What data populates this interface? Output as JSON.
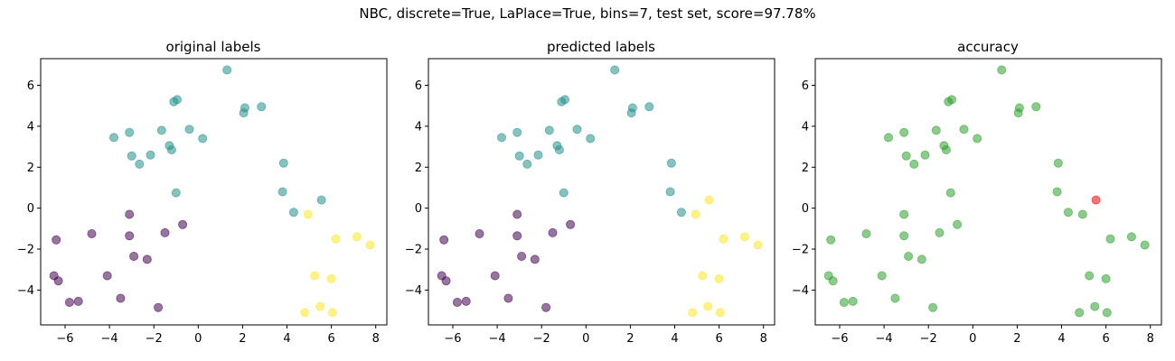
{
  "figure": {
    "suptitle": "NBC, discrete=True, LaPlace=True, bins=7, test set, score=97.78%"
  },
  "colors": {
    "class0": "#440154",
    "class1": "#21918c",
    "class2": "#fde725",
    "correct": "#2ca02c",
    "wrong": "#ff0000"
  },
  "chart_data": [
    {
      "type": "scatter",
      "title": "original labels",
      "xlim": [
        -7.1,
        8.5
      ],
      "ylim": [
        -5.7,
        7.3
      ],
      "xticks": [
        -6,
        -4,
        -2,
        0,
        2,
        4,
        6,
        8
      ],
      "yticks": [
        -4,
        -2,
        0,
        2,
        4,
        6
      ],
      "points": [
        {
          "x": -6.4,
          "y": -1.55,
          "class": 0
        },
        {
          "x": -6.5,
          "y": -3.3,
          "class": 0
        },
        {
          "x": -6.3,
          "y": -3.55,
          "class": 0
        },
        {
          "x": -5.8,
          "y": -4.6,
          "class": 0
        },
        {
          "x": -5.4,
          "y": -4.55,
          "class": 0
        },
        {
          "x": -4.8,
          "y": -1.25,
          "class": 0
        },
        {
          "x": -4.1,
          "y": -3.3,
          "class": 0
        },
        {
          "x": -3.5,
          "y": -4.4,
          "class": 0
        },
        {
          "x": -3.1,
          "y": -0.3,
          "class": 0
        },
        {
          "x": -3.1,
          "y": -1.35,
          "class": 0
        },
        {
          "x": -2.9,
          "y": -2.35,
          "class": 0
        },
        {
          "x": -2.3,
          "y": -2.5,
          "class": 0
        },
        {
          "x": -1.8,
          "y": -4.85,
          "class": 0
        },
        {
          "x": -1.5,
          "y": -1.2,
          "class": 0
        },
        {
          "x": -0.7,
          "y": -0.8,
          "class": 0
        },
        {
          "x": -3.8,
          "y": 3.45,
          "class": 1
        },
        {
          "x": -3.1,
          "y": 3.7,
          "class": 1
        },
        {
          "x": -3.0,
          "y": 2.55,
          "class": 1
        },
        {
          "x": -2.65,
          "y": 2.15,
          "class": 1
        },
        {
          "x": -2.15,
          "y": 2.6,
          "class": 1
        },
        {
          "x": -1.65,
          "y": 3.8,
          "class": 1
        },
        {
          "x": -1.3,
          "y": 3.05,
          "class": 1
        },
        {
          "x": -1.2,
          "y": 2.85,
          "class": 1
        },
        {
          "x": -1.1,
          "y": 5.2,
          "class": 1
        },
        {
          "x": -0.95,
          "y": 5.3,
          "class": 1
        },
        {
          "x": -1.0,
          "y": 0.75,
          "class": 1
        },
        {
          "x": -0.4,
          "y": 3.85,
          "class": 1
        },
        {
          "x": 0.2,
          "y": 3.4,
          "class": 1
        },
        {
          "x": 1.3,
          "y": 6.75,
          "class": 1
        },
        {
          "x": 2.05,
          "y": 4.65,
          "class": 1
        },
        {
          "x": 2.1,
          "y": 4.9,
          "class": 1
        },
        {
          "x": 2.85,
          "y": 4.95,
          "class": 1
        },
        {
          "x": 3.85,
          "y": 2.2,
          "class": 1
        },
        {
          "x": 3.8,
          "y": 0.8,
          "class": 1
        },
        {
          "x": 4.3,
          "y": -0.2,
          "class": 1
        },
        {
          "x": 5.55,
          "y": 0.4,
          "class": 1
        },
        {
          "x": 4.95,
          "y": -0.3,
          "class": 2
        },
        {
          "x": 4.8,
          "y": -5.1,
          "class": 2
        },
        {
          "x": 5.25,
          "y": -3.3,
          "class": 2
        },
        {
          "x": 5.5,
          "y": -4.8,
          "class": 2
        },
        {
          "x": 6.0,
          "y": -3.45,
          "class": 2
        },
        {
          "x": 6.05,
          "y": -5.1,
          "class": 2
        },
        {
          "x": 6.2,
          "y": -1.5,
          "class": 2
        },
        {
          "x": 7.15,
          "y": -1.4,
          "class": 2
        },
        {
          "x": 7.75,
          "y": -1.8,
          "class": 2
        }
      ]
    },
    {
      "type": "scatter",
      "title": "predicted labels",
      "xlim": [
        -7.1,
        8.5
      ],
      "ylim": [
        -5.7,
        7.3
      ],
      "xticks": [
        -6,
        -4,
        -2,
        0,
        2,
        4,
        6,
        8
      ],
      "yticks": [
        -4,
        -2,
        0,
        2,
        4,
        6
      ],
      "points": [
        {
          "x": -6.4,
          "y": -1.55,
          "class": 0
        },
        {
          "x": -6.5,
          "y": -3.3,
          "class": 0
        },
        {
          "x": -6.3,
          "y": -3.55,
          "class": 0
        },
        {
          "x": -5.8,
          "y": -4.6,
          "class": 0
        },
        {
          "x": -5.4,
          "y": -4.55,
          "class": 0
        },
        {
          "x": -4.8,
          "y": -1.25,
          "class": 0
        },
        {
          "x": -4.1,
          "y": -3.3,
          "class": 0
        },
        {
          "x": -3.5,
          "y": -4.4,
          "class": 0
        },
        {
          "x": -3.1,
          "y": -0.3,
          "class": 0
        },
        {
          "x": -3.1,
          "y": -1.35,
          "class": 0
        },
        {
          "x": -2.9,
          "y": -2.35,
          "class": 0
        },
        {
          "x": -2.3,
          "y": -2.5,
          "class": 0
        },
        {
          "x": -1.8,
          "y": -4.85,
          "class": 0
        },
        {
          "x": -1.5,
          "y": -1.2,
          "class": 0
        },
        {
          "x": -0.7,
          "y": -0.8,
          "class": 0
        },
        {
          "x": -3.8,
          "y": 3.45,
          "class": 1
        },
        {
          "x": -3.1,
          "y": 3.7,
          "class": 1
        },
        {
          "x": -3.0,
          "y": 2.55,
          "class": 1
        },
        {
          "x": -2.65,
          "y": 2.15,
          "class": 1
        },
        {
          "x": -2.15,
          "y": 2.6,
          "class": 1
        },
        {
          "x": -1.65,
          "y": 3.8,
          "class": 1
        },
        {
          "x": -1.3,
          "y": 3.05,
          "class": 1
        },
        {
          "x": -1.2,
          "y": 2.85,
          "class": 1
        },
        {
          "x": -1.1,
          "y": 5.2,
          "class": 1
        },
        {
          "x": -0.95,
          "y": 5.3,
          "class": 1
        },
        {
          "x": -1.0,
          "y": 0.75,
          "class": 1
        },
        {
          "x": -0.4,
          "y": 3.85,
          "class": 1
        },
        {
          "x": 0.2,
          "y": 3.4,
          "class": 1
        },
        {
          "x": 1.3,
          "y": 6.75,
          "class": 1
        },
        {
          "x": 2.05,
          "y": 4.65,
          "class": 1
        },
        {
          "x": 2.1,
          "y": 4.9,
          "class": 1
        },
        {
          "x": 2.85,
          "y": 4.95,
          "class": 1
        },
        {
          "x": 3.85,
          "y": 2.2,
          "class": 1
        },
        {
          "x": 3.8,
          "y": 0.8,
          "class": 1
        },
        {
          "x": 4.3,
          "y": -0.2,
          "class": 1
        },
        {
          "x": 5.55,
          "y": 0.4,
          "class": 2
        },
        {
          "x": 4.95,
          "y": -0.3,
          "class": 2
        },
        {
          "x": 4.8,
          "y": -5.1,
          "class": 2
        },
        {
          "x": 5.25,
          "y": -3.3,
          "class": 2
        },
        {
          "x": 5.5,
          "y": -4.8,
          "class": 2
        },
        {
          "x": 6.0,
          "y": -3.45,
          "class": 2
        },
        {
          "x": 6.05,
          "y": -5.1,
          "class": 2
        },
        {
          "x": 6.2,
          "y": -1.5,
          "class": 2
        },
        {
          "x": 7.15,
          "y": -1.4,
          "class": 2
        },
        {
          "x": 7.75,
          "y": -1.8,
          "class": 2
        }
      ]
    },
    {
      "type": "scatter",
      "title": "accuracy",
      "xlim": [
        -7.1,
        8.5
      ],
      "ylim": [
        -5.7,
        7.3
      ],
      "xticks": [
        -6,
        -4,
        -2,
        0,
        2,
        4,
        6,
        8
      ],
      "yticks": [
        -4,
        -2,
        0,
        2,
        4,
        6
      ],
      "points": [
        {
          "x": -6.4,
          "y": -1.55,
          "correct": true
        },
        {
          "x": -6.5,
          "y": -3.3,
          "correct": true
        },
        {
          "x": -6.3,
          "y": -3.55,
          "correct": true
        },
        {
          "x": -5.8,
          "y": -4.6,
          "correct": true
        },
        {
          "x": -5.4,
          "y": -4.55,
          "correct": true
        },
        {
          "x": -4.8,
          "y": -1.25,
          "correct": true
        },
        {
          "x": -4.1,
          "y": -3.3,
          "correct": true
        },
        {
          "x": -3.5,
          "y": -4.4,
          "correct": true
        },
        {
          "x": -3.1,
          "y": -0.3,
          "correct": true
        },
        {
          "x": -3.1,
          "y": -1.35,
          "correct": true
        },
        {
          "x": -2.9,
          "y": -2.35,
          "correct": true
        },
        {
          "x": -2.3,
          "y": -2.5,
          "correct": true
        },
        {
          "x": -1.8,
          "y": -4.85,
          "correct": true
        },
        {
          "x": -1.5,
          "y": -1.2,
          "correct": true
        },
        {
          "x": -0.7,
          "y": -0.8,
          "correct": true
        },
        {
          "x": -3.8,
          "y": 3.45,
          "correct": true
        },
        {
          "x": -3.1,
          "y": 3.7,
          "correct": true
        },
        {
          "x": -3.0,
          "y": 2.55,
          "correct": true
        },
        {
          "x": -2.65,
          "y": 2.15,
          "correct": true
        },
        {
          "x": -2.15,
          "y": 2.6,
          "correct": true
        },
        {
          "x": -1.65,
          "y": 3.8,
          "correct": true
        },
        {
          "x": -1.3,
          "y": 3.05,
          "correct": true
        },
        {
          "x": -1.2,
          "y": 2.85,
          "correct": true
        },
        {
          "x": -1.1,
          "y": 5.2,
          "correct": true
        },
        {
          "x": -0.95,
          "y": 5.3,
          "correct": true
        },
        {
          "x": -1.0,
          "y": 0.75,
          "correct": true
        },
        {
          "x": -0.4,
          "y": 3.85,
          "correct": true
        },
        {
          "x": 0.2,
          "y": 3.4,
          "correct": true
        },
        {
          "x": 1.3,
          "y": 6.75,
          "correct": true
        },
        {
          "x": 2.05,
          "y": 4.65,
          "correct": true
        },
        {
          "x": 2.1,
          "y": 4.9,
          "correct": true
        },
        {
          "x": 2.85,
          "y": 4.95,
          "correct": true
        },
        {
          "x": 3.85,
          "y": 2.2,
          "correct": true
        },
        {
          "x": 3.8,
          "y": 0.8,
          "correct": true
        },
        {
          "x": 4.3,
          "y": -0.2,
          "correct": true
        },
        {
          "x": 5.55,
          "y": 0.4,
          "correct": false
        },
        {
          "x": 4.95,
          "y": -0.3,
          "correct": true
        },
        {
          "x": 4.8,
          "y": -5.1,
          "correct": true
        },
        {
          "x": 5.25,
          "y": -3.3,
          "correct": true
        },
        {
          "x": 5.5,
          "y": -4.8,
          "correct": true
        },
        {
          "x": 6.0,
          "y": -3.45,
          "correct": true
        },
        {
          "x": 6.05,
          "y": -5.1,
          "correct": true
        },
        {
          "x": 6.2,
          "y": -1.5,
          "correct": true
        },
        {
          "x": 7.15,
          "y": -1.4,
          "correct": true
        },
        {
          "x": 7.75,
          "y": -1.8,
          "correct": true
        }
      ]
    }
  ]
}
